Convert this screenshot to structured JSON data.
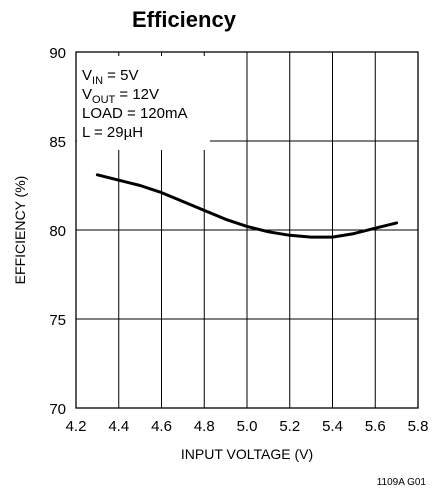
{
  "chart_data": {
    "type": "line",
    "title": "Efficiency",
    "xlabel": "INPUT VOLTAGE (V)",
    "ylabel": "EFFICIENCY (%)",
    "xlim": [
      4.2,
      5.8
    ],
    "ylim": [
      70,
      90
    ],
    "xticks": [
      "4.2",
      "4.4",
      "4.6",
      "4.8",
      "5.0",
      "5.2",
      "5.4",
      "5.6",
      "5.8"
    ],
    "yticks": [
      "70",
      "75",
      "80",
      "85",
      "90"
    ],
    "grid": true,
    "series": [
      {
        "x": [
          4.3,
          4.4,
          4.5,
          4.6,
          4.7,
          4.8,
          4.9,
          5.0,
          5.1,
          5.2,
          5.3,
          5.4,
          5.5,
          5.6,
          5.7
        ],
        "y": [
          83.1,
          82.8,
          82.5,
          82.1,
          81.6,
          81.1,
          80.6,
          80.2,
          79.9,
          79.7,
          79.6,
          79.6,
          79.8,
          80.1,
          80.4
        ]
      }
    ],
    "annotation": [
      {
        "main": "V",
        "sub": "IN",
        "rest": " = 5V"
      },
      {
        "main": "V",
        "sub": "OUT",
        "rest": " = 12V"
      },
      {
        "main": "LOAD = 120mA",
        "sub": "",
        "rest": ""
      },
      {
        "main": "L = 29µH",
        "sub": "",
        "rest": ""
      }
    ],
    "footnote": "1109A G01"
  }
}
